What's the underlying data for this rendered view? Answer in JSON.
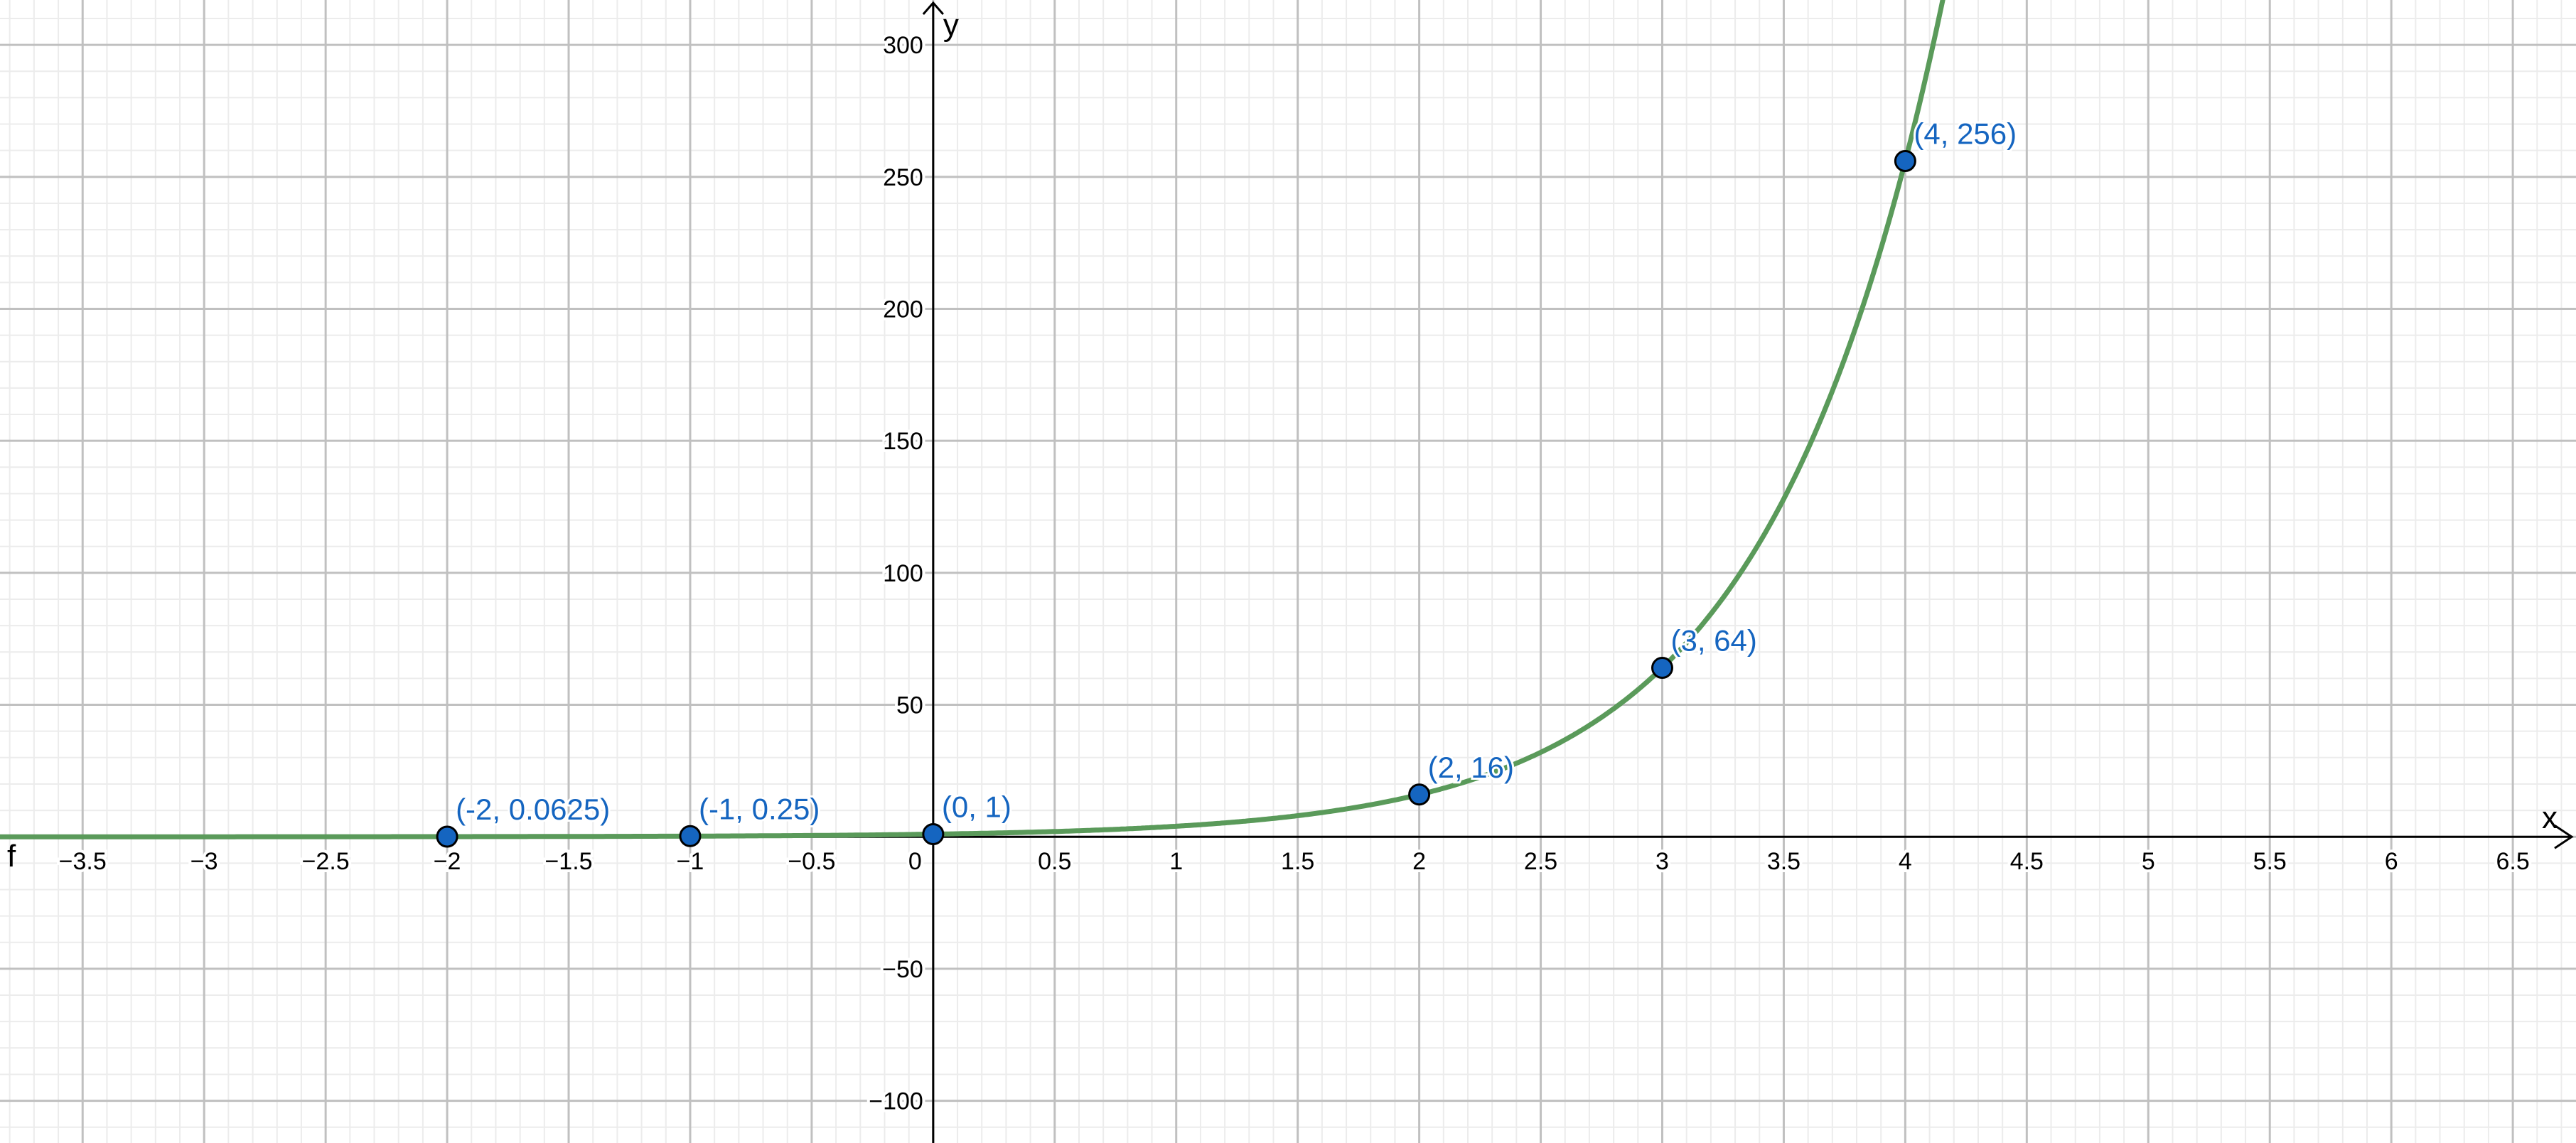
{
  "chart_data": {
    "type": "line",
    "function_label": "f",
    "xlabel": "x",
    "ylabel": "y",
    "xlim": [
      -3.84,
      6.76
    ],
    "ylim": [
      -116,
      317
    ],
    "grid": true,
    "x_ticks": [
      "−3.5",
      "−3",
      "−2.5",
      "−2",
      "−1.5",
      "−1",
      "−0.5",
      "0.5",
      "1",
      "1.5",
      "2",
      "2.5",
      "3",
      "3.5",
      "4",
      "4.5",
      "5",
      "5.5",
      "6",
      "6.5"
    ],
    "x_tick_values": [
      -3.5,
      -3,
      -2.5,
      -2,
      -1.5,
      -1,
      -0.5,
      0.5,
      1,
      1.5,
      2,
      2.5,
      3,
      3.5,
      4,
      4.5,
      5,
      5.5,
      6,
      6.5
    ],
    "origin_label": "0",
    "y_ticks": [
      "−100",
      "−50",
      "50",
      "100",
      "150",
      "200",
      "250",
      "300"
    ],
    "y_tick_values": [
      -100,
      -50,
      50,
      100,
      150,
      200,
      250,
      300
    ],
    "series": [
      {
        "base": 4,
        "color": "#5a9a5a"
      }
    ],
    "points": [
      {
        "x": -2,
        "y": 0.0625,
        "label": "(-2, 0.0625)"
      },
      {
        "x": -1,
        "y": 0.25,
        "label": "(-1, 0.25)"
      },
      {
        "x": 0,
        "y": 1,
        "label": "(0, 1)"
      },
      {
        "x": 2,
        "y": 16,
        "label": "(2, 16)"
      },
      {
        "x": 3,
        "y": 64,
        "label": "(3, 64)"
      },
      {
        "x": 4,
        "y": 256,
        "label": "(4, 256)"
      }
    ],
    "point_color": "#1565c0"
  }
}
